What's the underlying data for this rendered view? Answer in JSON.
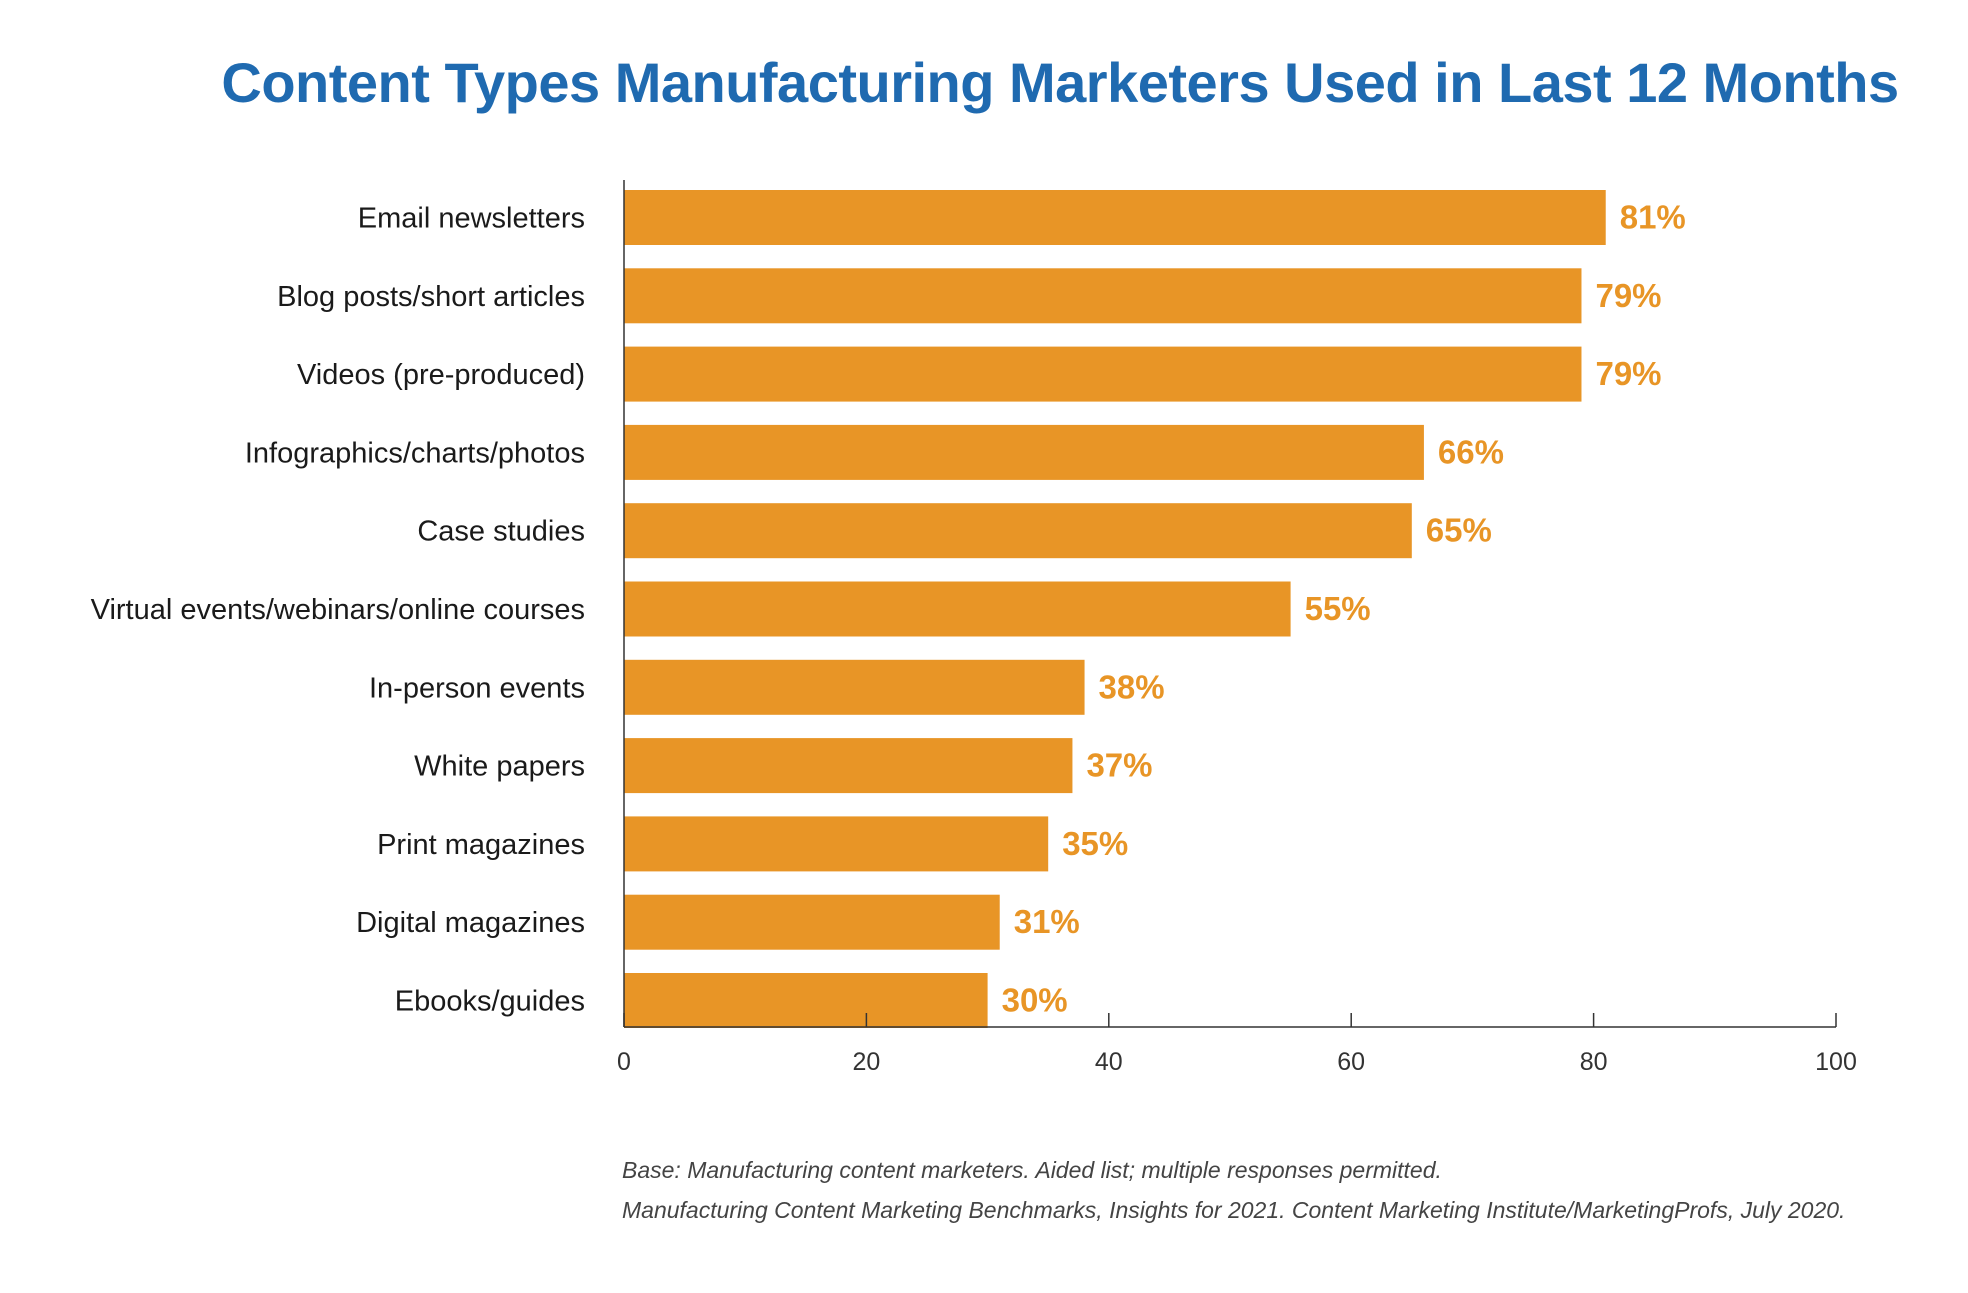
{
  "chart_data": {
    "type": "bar",
    "orientation": "horizontal",
    "title": "Content Types Manufacturing Marketers Used in Last 12 Months",
    "categories": [
      "Email newsletters",
      "Blog posts/short articles",
      "Videos (pre-produced)",
      "Infographics/charts/photos",
      "Case studies",
      "Virtual events/webinars/online courses",
      "In-person events",
      "White papers",
      "Print magazines",
      "Digital magazines",
      "Ebooks/guides"
    ],
    "values": [
      81,
      79,
      79,
      66,
      65,
      55,
      38,
      37,
      35,
      31,
      30
    ],
    "value_labels": [
      "81%",
      "79%",
      "79%",
      "66%",
      "65%",
      "55%",
      "38%",
      "37%",
      "35%",
      "31%",
      "30%"
    ],
    "xlim": [
      0,
      100
    ],
    "xticks": [
      0,
      20,
      40,
      60,
      80,
      100
    ],
    "xtick_labels": [
      "0",
      "20",
      "40",
      "60",
      "80",
      "100"
    ],
    "xlabel": "",
    "ylabel": "",
    "grid": false,
    "legend": "none",
    "bar_color": "#e89526",
    "label_color": "#e89526",
    "title_color": "#1f6ab0"
  },
  "notes": {
    "base": "Base: Manufacturing content marketers. Aided list; multiple responses permitted.",
    "source": "Manufacturing Content Marketing Benchmarks, Insights for 2021. Content Marketing Institute/MarketingProfs, July 2020."
  }
}
